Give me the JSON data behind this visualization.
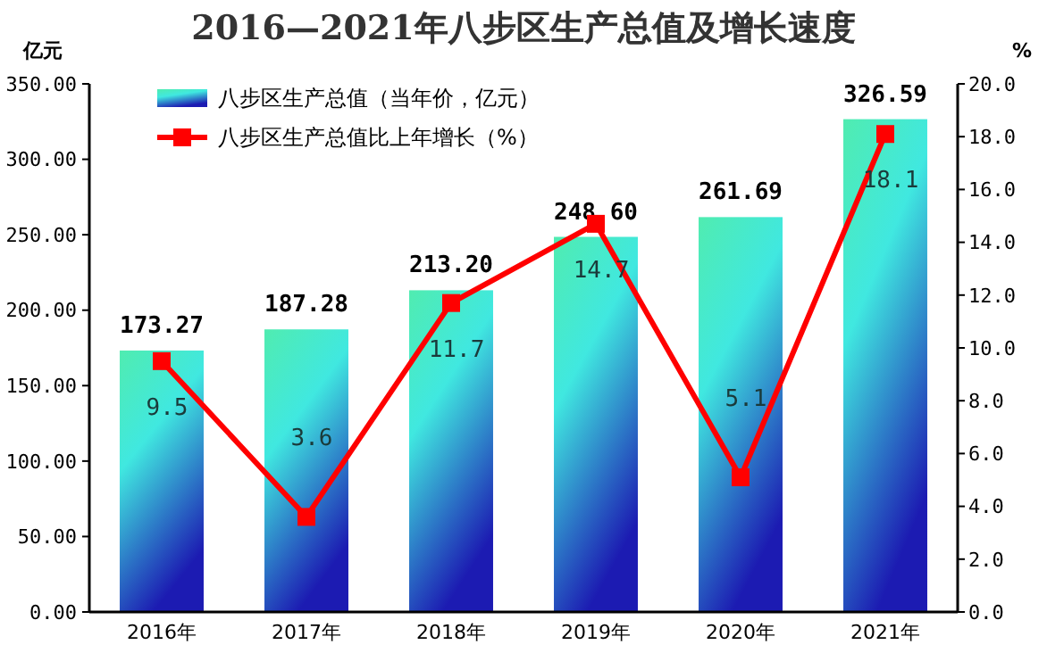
{
  "chart_data": {
    "type": "bar",
    "title": "2016—2021年八步区生产总值及增长速度",
    "ylabel": "亿元",
    "y2label": "%",
    "categories": [
      "2016年",
      "2017年",
      "2018年",
      "2019年",
      "2020年",
      "2021年"
    ],
    "series": [
      {
        "name": "八步区生产总值（当年价，亿元）",
        "color": "#40e8e0",
        "values": [
          173.27,
          187.28,
          213.2,
          248.6,
          261.69,
          326.59
        ],
        "value_labels": [
          "173.27",
          "187.28",
          "213.20",
          "248.60",
          "261.69",
          "326.59"
        ]
      },
      {
        "name": "八步区生产总值比上年增长（%）",
        "type": "line",
        "axis": "y2",
        "color": "#ff0000",
        "marker": "square",
        "values": [
          9.5,
          3.6,
          11.7,
          14.7,
          5.1,
          18.1
        ],
        "value_labels": [
          "9.5",
          "3.6",
          "11.7",
          "14.7",
          "5.1",
          "18.1"
        ]
      }
    ],
    "ylim": [
      0,
      350
    ],
    "yticks": [
      {
        "value": 0,
        "label": "0.00"
      },
      {
        "value": 50,
        "label": "50.00"
      },
      {
        "value": 100,
        "label": "100.00"
      },
      {
        "value": 150,
        "label": "150.00"
      },
      {
        "value": 200,
        "label": "200.00"
      },
      {
        "value": 250,
        "label": "250.00"
      },
      {
        "value": 300,
        "label": "300.00"
      },
      {
        "value": 350,
        "label": "350.00"
      }
    ],
    "y2lim": [
      0,
      20
    ],
    "y2ticks": [
      {
        "value": 0,
        "label": "0.0"
      },
      {
        "value": 2,
        "label": "2.0"
      },
      {
        "value": 4,
        "label": "4.0"
      },
      {
        "value": 6,
        "label": "6.0"
      },
      {
        "value": 8,
        "label": "8.0"
      },
      {
        "value": 10,
        "label": "10.0"
      },
      {
        "value": 12,
        "label": "12.0"
      },
      {
        "value": 14,
        "label": "14.0"
      },
      {
        "value": 16,
        "label": "16.0"
      },
      {
        "value": 18,
        "label": "18.0"
      },
      {
        "value": 20,
        "label": "20.0"
      }
    ],
    "legend": "top left",
    "grid": false
  }
}
